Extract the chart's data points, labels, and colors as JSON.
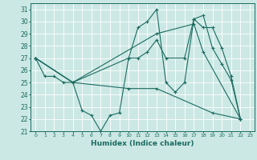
{
  "xlabel": "Humidex (Indice chaleur)",
  "xlim": [
    -0.5,
    23.5
  ],
  "ylim": [
    21,
    31.5
  ],
  "yticks": [
    21,
    22,
    23,
    24,
    25,
    26,
    27,
    28,
    29,
    30,
    31
  ],
  "xticks": [
    0,
    1,
    2,
    3,
    4,
    5,
    6,
    7,
    8,
    9,
    10,
    11,
    12,
    13,
    14,
    15,
    16,
    17,
    18,
    19,
    20,
    21,
    22,
    23
  ],
  "bg_color": "#cce8e4",
  "line_color": "#1a6b60",
  "grid_color": "#ffffff",
  "series1": [
    [
      0,
      27
    ],
    [
      1,
      25.5
    ],
    [
      2,
      25.5
    ],
    [
      3,
      25.0
    ],
    [
      4,
      25.0
    ],
    [
      5,
      22.7
    ],
    [
      6,
      22.3
    ],
    [
      7,
      21.0
    ],
    [
      8,
      22.3
    ],
    [
      9,
      22.5
    ],
    [
      10,
      27.0
    ],
    [
      11,
      29.5
    ],
    [
      12,
      30.0
    ],
    [
      13,
      31.0
    ],
    [
      14,
      25.0
    ],
    [
      15,
      24.2
    ],
    [
      16,
      25.0
    ],
    [
      17,
      30.2
    ],
    [
      18,
      30.5
    ],
    [
      19,
      27.8
    ],
    [
      20,
      26.5
    ],
    [
      21,
      25.2
    ],
    [
      22,
      22.0
    ]
  ],
  "series2": [
    [
      0,
      27
    ],
    [
      4,
      25.0
    ],
    [
      10,
      27.0
    ],
    [
      11,
      27.0
    ],
    [
      12,
      27.5
    ],
    [
      13,
      28.5
    ],
    [
      14,
      27.0
    ],
    [
      16,
      27.0
    ],
    [
      17,
      30.2
    ],
    [
      18,
      29.5
    ],
    [
      19,
      29.5
    ],
    [
      20,
      27.8
    ],
    [
      21,
      25.5
    ],
    [
      22,
      22.0
    ]
  ],
  "series3": [
    [
      0,
      27
    ],
    [
      4,
      25.0
    ],
    [
      13,
      29.0
    ],
    [
      17,
      29.8
    ],
    [
      18,
      27.5
    ],
    [
      22,
      22.0
    ]
  ],
  "series4": [
    [
      0,
      27
    ],
    [
      4,
      25.0
    ],
    [
      10,
      24.5
    ],
    [
      13,
      24.5
    ],
    [
      19,
      22.5
    ],
    [
      22,
      22.0
    ]
  ]
}
